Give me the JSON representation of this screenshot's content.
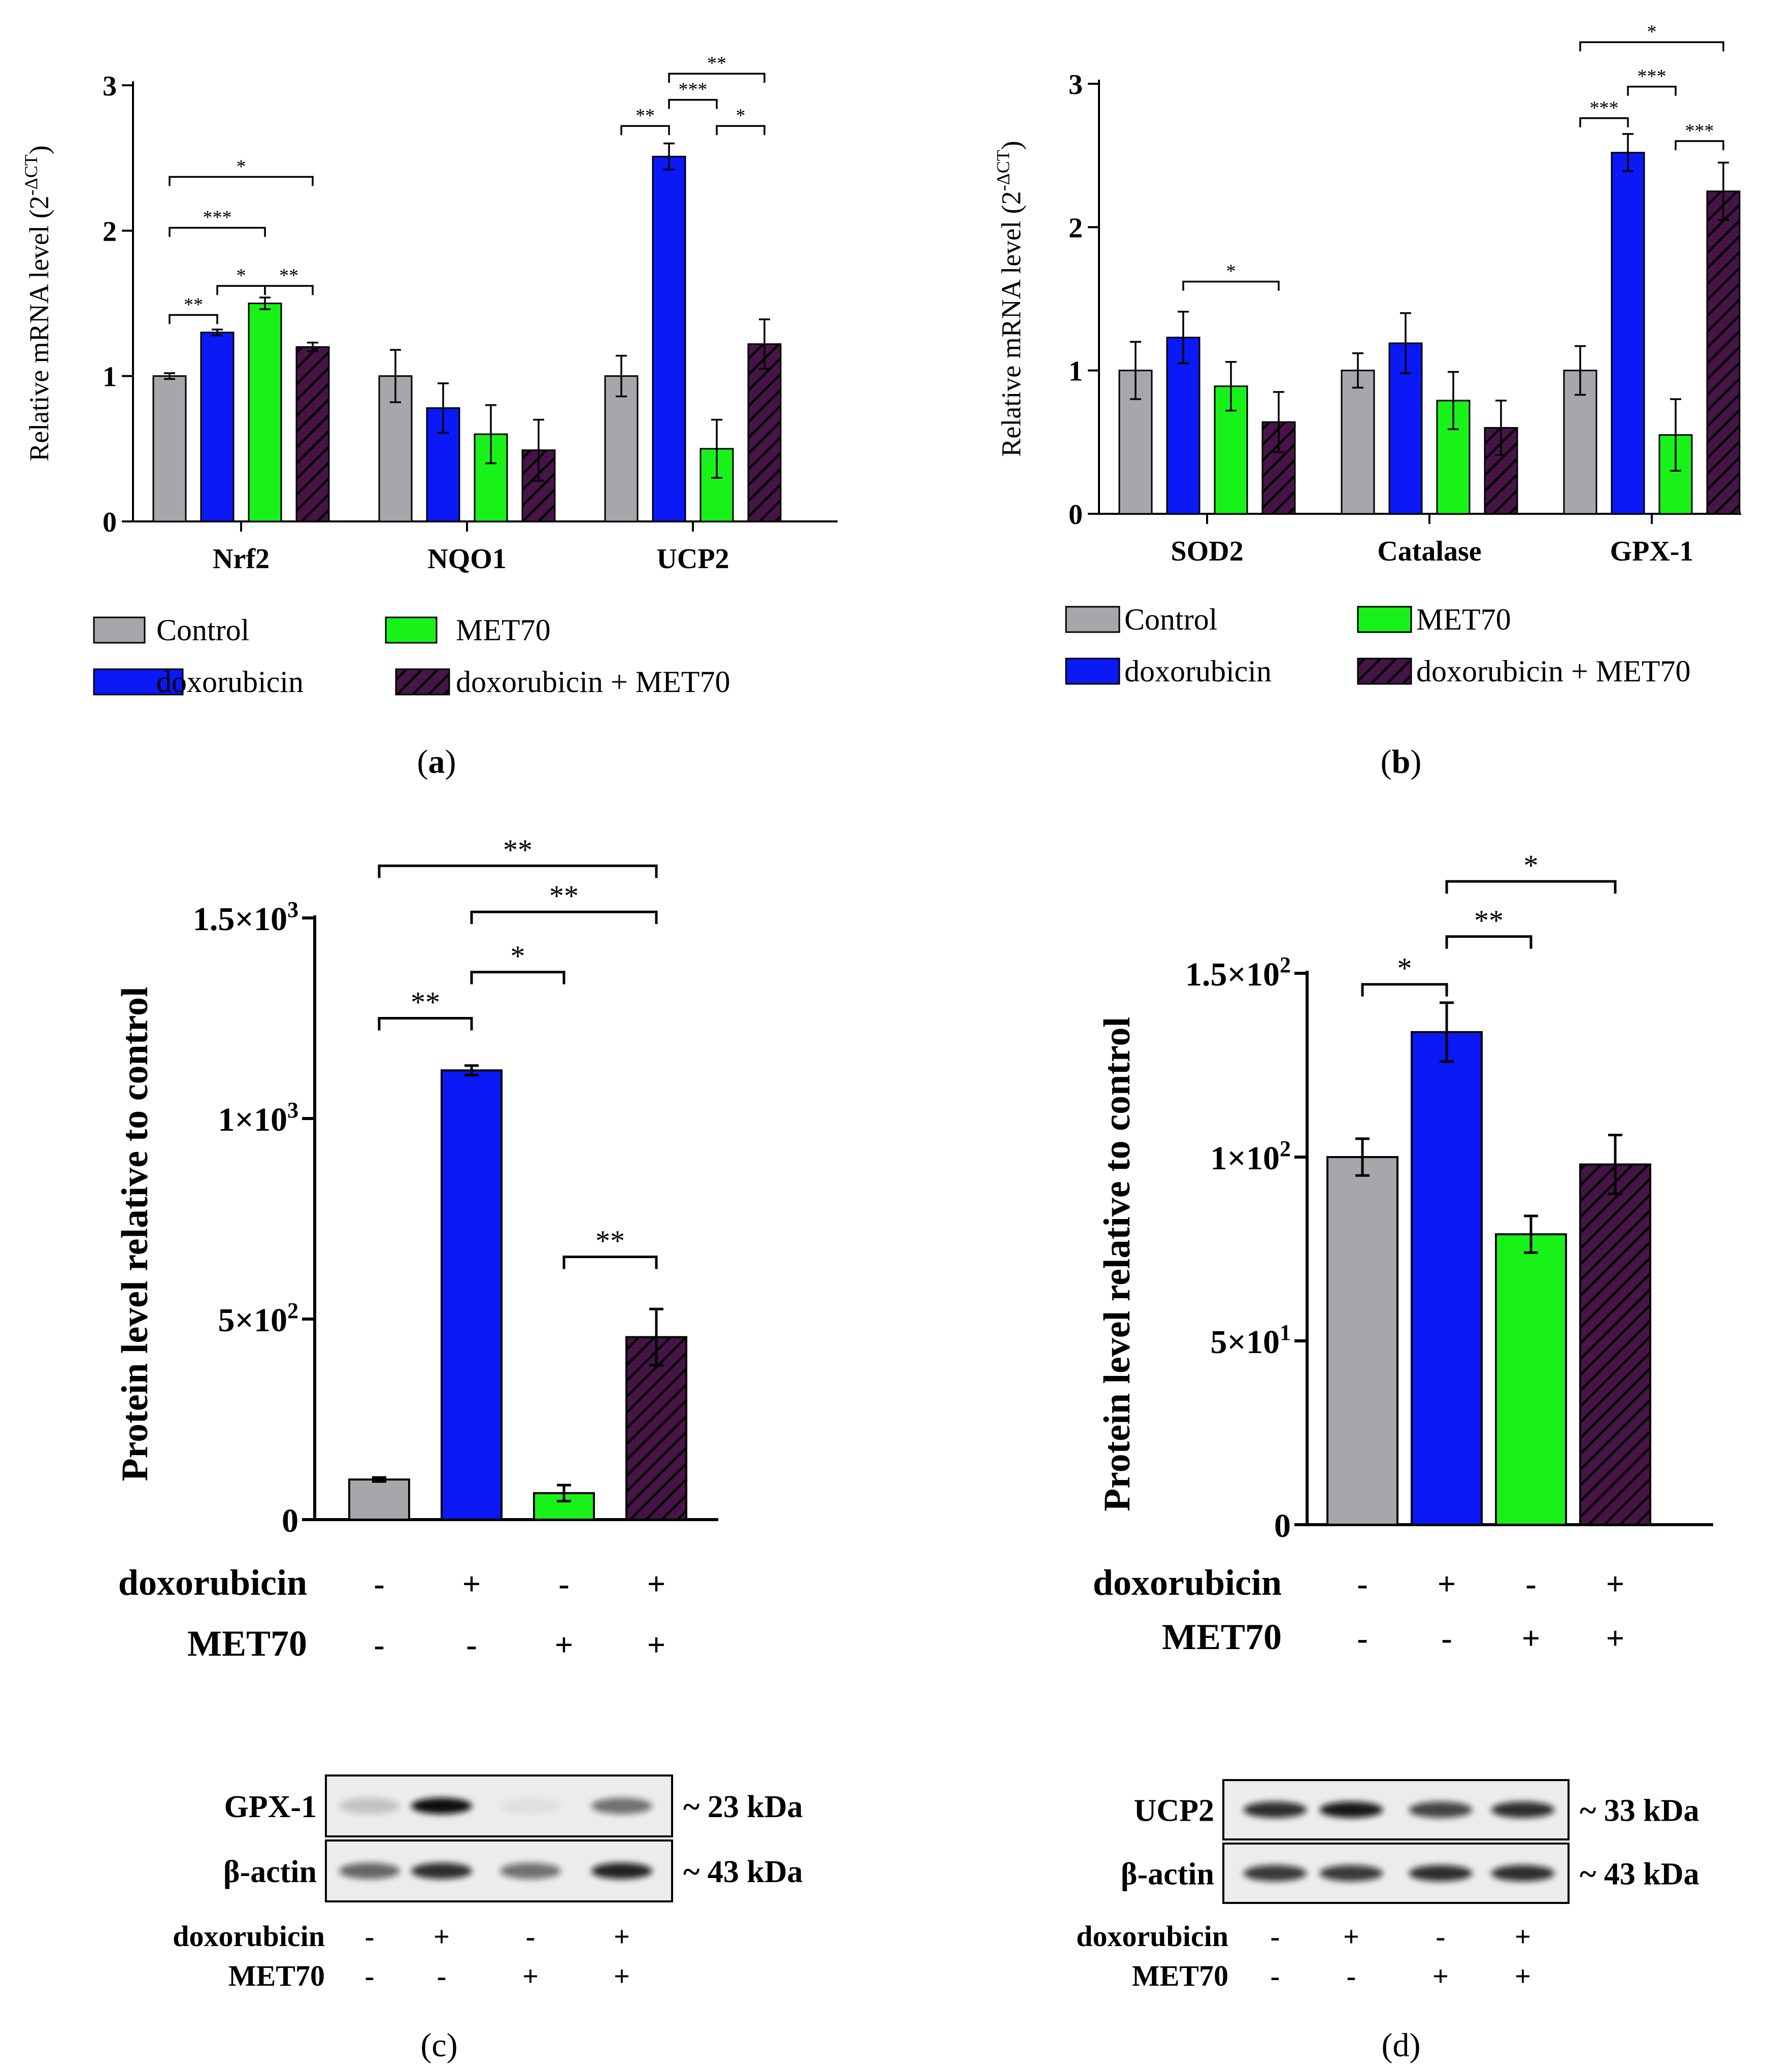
{
  "colors": {
    "control": "#a6a6ab",
    "doxorubicin": "#0a19f5",
    "met70": "#19f219",
    "combo": "#461446",
    "combo_hatch": "#000000"
  },
  "legend": {
    "control": "Control",
    "met70": "MET70",
    "doxorubicin": "doxorubicin",
    "combo": "doxorubicin + MET70"
  },
  "panel_labels": {
    "a": "a",
    "b": "b",
    "c": "c",
    "d": "d"
  },
  "chart_data": [
    {
      "panel": "a",
      "type": "bar",
      "ylabel": "Relative mRNA level (2",
      "ylabel_sup": "-ΔCT",
      "ylim": [
        0,
        3
      ],
      "yticks": [
        0,
        1,
        2,
        3
      ],
      "ytick_labels": [
        "0",
        "1",
        "2",
        "3"
      ],
      "categories": [
        "Nrf2",
        "NQO1",
        "UCP2"
      ],
      "series": [
        {
          "name": "Control",
          "key": "control",
          "values": [
            1.0,
            1.0,
            1.0
          ],
          "errors": [
            0.02,
            0.18,
            0.14
          ]
        },
        {
          "name": "doxorubicin",
          "key": "doxorubicin",
          "values": [
            1.3,
            0.78,
            2.51
          ],
          "errors": [
            0.02,
            0.17,
            0.09
          ]
        },
        {
          "name": "MET70",
          "key": "met70",
          "values": [
            1.5,
            0.6,
            0.5
          ],
          "errors": [
            0.04,
            0.2,
            0.2
          ]
        },
        {
          "name": "doxorubicin + MET70",
          "key": "combo",
          "values": [
            1.2,
            0.49,
            1.22
          ],
          "errors": [
            0.03,
            0.21,
            0.17
          ]
        }
      ],
      "significance": [
        {
          "cat": 0,
          "from": 0,
          "to": 1,
          "label": "**",
          "y": 1.42
        },
        {
          "cat": 0,
          "from": 1,
          "to": 2,
          "label": "*",
          "y": 1.62
        },
        {
          "cat": 0,
          "from": 2,
          "to": 3,
          "label": "**",
          "y": 1.62
        },
        {
          "cat": 0,
          "from": 0,
          "to": 2,
          "label": "***",
          "y": 2.02
        },
        {
          "cat": 0,
          "from": 0,
          "to": 3,
          "label": "*",
          "y": 2.37
        },
        {
          "cat": 2,
          "from": 0,
          "to": 1,
          "label": "**",
          "y": 2.72
        },
        {
          "cat": 2,
          "from": 1,
          "to": 2,
          "label": "***",
          "y": 2.9
        },
        {
          "cat": 2,
          "from": 2,
          "to": 3,
          "label": "*",
          "y": 2.72
        },
        {
          "cat": 2,
          "from": 1,
          "to": 3,
          "label": "**",
          "y": 3.08
        }
      ]
    },
    {
      "panel": "b",
      "type": "bar",
      "ylabel": "Relative mRNA level (2",
      "ylabel_sup": "-ΔCT",
      "ylim": [
        0,
        3
      ],
      "yticks": [
        0,
        1,
        2,
        3
      ],
      "ytick_labels": [
        "0",
        "1",
        "2",
        "3"
      ],
      "categories": [
        "SOD2",
        "Catalase",
        "GPX-1"
      ],
      "series": [
        {
          "name": "Control",
          "key": "control",
          "values": [
            1.0,
            1.0,
            1.0
          ],
          "errors": [
            0.2,
            0.12,
            0.17
          ]
        },
        {
          "name": "doxorubicin",
          "key": "doxorubicin",
          "values": [
            1.23,
            1.19,
            2.52
          ],
          "errors": [
            0.18,
            0.21,
            0.13
          ]
        },
        {
          "name": "MET70",
          "key": "met70",
          "values": [
            0.89,
            0.79,
            0.55
          ],
          "errors": [
            0.17,
            0.2,
            0.25
          ]
        },
        {
          "name": "doxorubicin + MET70",
          "key": "combo",
          "values": [
            0.64,
            0.6,
            2.25
          ],
          "errors": [
            0.21,
            0.19,
            0.2
          ]
        }
      ],
      "significance": [
        {
          "cat": 0,
          "from": 1,
          "to": 3,
          "label": "*",
          "y": 1.62
        },
        {
          "cat": 2,
          "from": 0,
          "to": 1,
          "label": "***",
          "y": 2.76
        },
        {
          "cat": 2,
          "from": 1,
          "to": 2,
          "label": "***",
          "y": 2.98
        },
        {
          "cat": 2,
          "from": 2,
          "to": 3,
          "label": "***",
          "y": 2.6
        },
        {
          "cat": 2,
          "from": 0,
          "to": 3,
          "label": "*",
          "y": 3.29
        }
      ]
    },
    {
      "panel": "c",
      "type": "bar",
      "ylabel": "Protein level relative to control",
      "ylim": [
        0,
        1500
      ],
      "yticks": [
        0,
        500,
        1000,
        1500
      ],
      "ytick_labels": [
        "0",
        "5×10",
        "1×10",
        "1.5×10"
      ],
      "ytick_exps": [
        "",
        "2",
        "3",
        "3"
      ],
      "categories": [
        "Control",
        "doxorubicin",
        "MET70",
        "doxorubicin + MET70"
      ],
      "values": [
        100,
        1120,
        66,
        455
      ],
      "errors": [
        5,
        12,
        20,
        70
      ],
      "treatment_rows": [
        {
          "label": "doxorubicin",
          "signs": [
            "-",
            "+",
            "-",
            "+"
          ]
        },
        {
          "label": "MET70",
          "signs": [
            "-",
            "-",
            "+",
            "+"
          ]
        }
      ],
      "significance": [
        {
          "from": 0,
          "to": 1,
          "label": "**",
          "y": 1250
        },
        {
          "from": 1,
          "to": 2,
          "label": "*",
          "y": 1365
        },
        {
          "from": 2,
          "to": 3,
          "label": "**",
          "y": 655
        },
        {
          "from": 1,
          "to": 3,
          "label": "**",
          "y": 1515
        },
        {
          "from": 0,
          "to": 3,
          "label": "**",
          "y": 1630
        }
      ]
    },
    {
      "panel": "d",
      "type": "bar",
      "ylabel": "Protein level relative to control",
      "ylim": [
        0,
        150
      ],
      "yticks": [
        0,
        50,
        100,
        150
      ],
      "ytick_labels": [
        "0",
        "5×10",
        "1×10",
        "1.5×10"
      ],
      "ytick_exps": [
        "",
        "1",
        "2",
        "2"
      ],
      "categories": [
        "Control",
        "doxorubicin",
        "MET70",
        "doxorubicin + MET70"
      ],
      "values": [
        100,
        134,
        79,
        98
      ],
      "errors": [
        5,
        8,
        5,
        8
      ],
      "treatment_rows": [
        {
          "label": "doxorubicin",
          "signs": [
            "-",
            "+",
            "-",
            "+"
          ]
        },
        {
          "label": "MET70",
          "signs": [
            "-",
            "-",
            "+",
            "+"
          ]
        }
      ],
      "significance": [
        {
          "from": 0,
          "to": 1,
          "label": "*",
          "y": 147
        },
        {
          "from": 1,
          "to": 2,
          "label": "**",
          "y": 160
        },
        {
          "from": 1,
          "to": 3,
          "label": "*",
          "y": 175
        }
      ]
    }
  ],
  "blots": {
    "c": {
      "rows": [
        {
          "label": "GPX-1",
          "size": "~ 23 kDa",
          "intensities": [
            0.18,
            1.0,
            0.05,
            0.55
          ]
        },
        {
          "label": "β-actin",
          "size": "~ 43 kDa",
          "intensities": [
            0.6,
            0.85,
            0.55,
            0.9
          ]
        }
      ],
      "treatment_rows": [
        {
          "label": "doxorubicin",
          "signs": [
            "-",
            "+",
            "-",
            "+"
          ]
        },
        {
          "label": "MET70",
          "signs": [
            "-",
            "-",
            "+",
            "+"
          ]
        }
      ]
    },
    "d": {
      "rows": [
        {
          "label": "UCP2",
          "size": "~ 33 kDa",
          "intensities": [
            0.85,
            0.95,
            0.75,
            0.85
          ]
        },
        {
          "label": "β-actin",
          "size": "~ 43 kDa",
          "intensities": [
            0.8,
            0.8,
            0.85,
            0.85
          ]
        }
      ],
      "treatment_rows": [
        {
          "label": "doxorubicin",
          "signs": [
            "-",
            "+",
            "-",
            "+"
          ]
        },
        {
          "label": "MET70",
          "signs": [
            "-",
            "-",
            "+",
            "+"
          ]
        }
      ]
    }
  }
}
